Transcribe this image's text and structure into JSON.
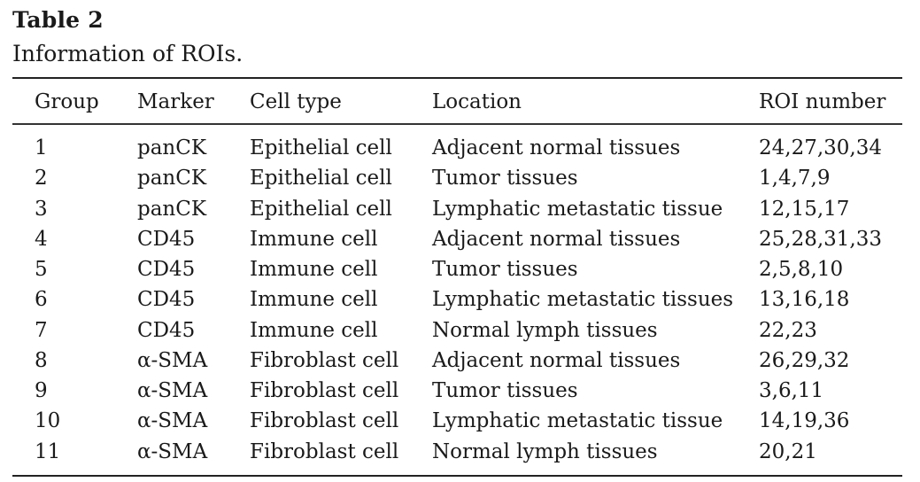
{
  "table": {
    "title": "Table 2",
    "caption": "Information of ROIs.",
    "columns": [
      "Group",
      "Marker",
      "Cell type",
      "Location",
      "ROI number"
    ],
    "rows": [
      {
        "group": "1",
        "marker": "panCK",
        "cell_type": "Epithelial cell",
        "location": "Adjacent normal tissues",
        "roi_number": "24,27,30,34"
      },
      {
        "group": "2",
        "marker": "panCK",
        "cell_type": "Epithelial cell",
        "location": "Tumor tissues",
        "roi_number": "1,4,7,9"
      },
      {
        "group": "3",
        "marker": "panCK",
        "cell_type": "Epithelial cell",
        "location": "Lymphatic metastatic tissue",
        "roi_number": "12,15,17"
      },
      {
        "group": "4",
        "marker": "CD45",
        "cell_type": "Immune cell",
        "location": "Adjacent normal tissues",
        "roi_number": "25,28,31,33"
      },
      {
        "group": "5",
        "marker": "CD45",
        "cell_type": "Immune cell",
        "location": "Tumor tissues",
        "roi_number": "2,5,8,10"
      },
      {
        "group": "6",
        "marker": "CD45",
        "cell_type": "Immune cell",
        "location": "Lymphatic metastatic tissues",
        "roi_number": "13,16,18"
      },
      {
        "group": "7",
        "marker": "CD45",
        "cell_type": "Immune cell",
        "location": "Normal lymph tissues",
        "roi_number": "22,23"
      },
      {
        "group": "8",
        "marker": "α-SMA",
        "cell_type": "Fibroblast cell",
        "location": "Adjacent normal tissues",
        "roi_number": "26,29,32"
      },
      {
        "group": "9",
        "marker": "α-SMA",
        "cell_type": "Fibroblast cell",
        "location": "Tumor tissues",
        "roi_number": "3,6,11"
      },
      {
        "group": "10",
        "marker": "α-SMA",
        "cell_type": "Fibroblast cell",
        "location": "Lymphatic metastatic tissue",
        "roi_number": "14,19,36"
      },
      {
        "group": "11",
        "marker": "α-SMA",
        "cell_type": "Fibroblast cell",
        "location": "Normal lymph tissues",
        "roi_number": "20,21"
      }
    ]
  }
}
